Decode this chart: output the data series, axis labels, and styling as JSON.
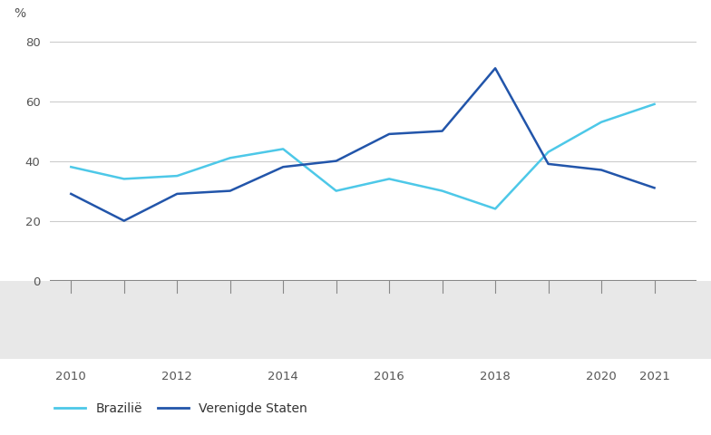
{
  "years": [
    2010,
    2011,
    2012,
    2013,
    2014,
    2015,
    2016,
    2017,
    2018,
    2019,
    2020,
    2021
  ],
  "brazil": [
    38,
    34,
    35,
    41,
    44,
    30,
    34,
    30,
    24,
    43,
    53,
    59
  ],
  "usa": [
    29,
    20,
    29,
    30,
    38,
    40,
    49,
    50,
    71,
    39,
    37,
    31
  ],
  "brazil_color": "#4DC8E8",
  "usa_color": "#2255AA",
  "brazil_label": "Brazilië",
  "usa_label": "Verenigde Staten",
  "ylabel": "%",
  "yticks": [
    0,
    20,
    40,
    60,
    80
  ],
  "ylim": [
    0,
    88
  ],
  "background_white": "#ffffff",
  "background_gray": "#e8e8e8",
  "grid_color": "#cccccc",
  "zero_line_color": "#888888",
  "tick_label_color": "#555555",
  "x_tick_years": [
    2010,
    2012,
    2014,
    2016,
    2018,
    2020,
    2021
  ],
  "x_tick_labels": [
    "2010",
    "2012",
    "2014",
    "2016",
    "2018",
    "2020",
    "2021"
  ],
  "legend_labels": [
    "Brazilië",
    "Verenigde Staten"
  ],
  "legend_colors": [
    "#4DC8E8",
    "#2255AA"
  ]
}
